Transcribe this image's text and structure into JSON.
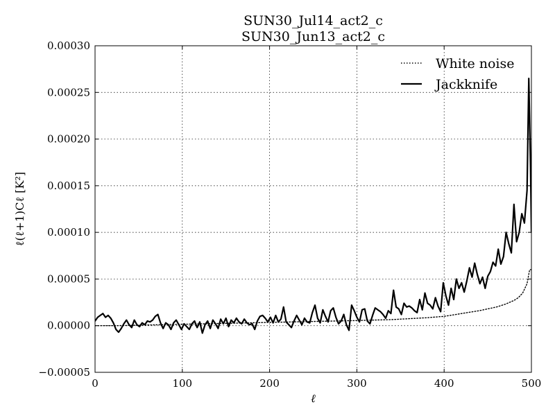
{
  "chart_data": {
    "type": "line",
    "title": [
      "SUN30_Jul14_act2_c",
      "SUN30_Jun13_act2_c"
    ],
    "xlabel": "ℓ",
    "ylabel": "ℓ(ℓ+1)Cℓ [K²]",
    "xlim": [
      0,
      500
    ],
    "ylim": [
      -5e-05,
      0.0003
    ],
    "xticks": [
      0,
      100,
      200,
      300,
      400,
      500
    ],
    "xtick_labels": [
      "0",
      "100",
      "200",
      "300",
      "400",
      "500"
    ],
    "yticks": [
      -5e-05,
      0,
      5e-05,
      0.0001,
      0.00015,
      0.0002,
      0.00025,
      0.0003
    ],
    "ytick_labels": [
      "−0.00005",
      "0.00000",
      "0.00005",
      "0.00010",
      "0.00015",
      "0.00020",
      "0.00025",
      "0.00030"
    ],
    "grid": true,
    "legend": {
      "placement": "top-right"
    },
    "series": [
      {
        "name": "White noise",
        "style": "dotted",
        "color": "#000000",
        "x": [
          0,
          25,
          50,
          75,
          100,
          125,
          150,
          175,
          200,
          225,
          250,
          275,
          300,
          320,
          340,
          360,
          380,
          400,
          420,
          440,
          460,
          470,
          480,
          485,
          490,
          495,
          498,
          500
        ],
        "y": [
          0.0,
          0.0,
          5e-07,
          1e-06,
          1.5e-06,
          2e-06,
          2.5e-06,
          3e-06,
          3.5e-06,
          4e-06,
          4.5e-06,
          5e-06,
          5.5e-06,
          6e-06,
          6.5e-06,
          7.5e-06,
          8.5e-06,
          1e-05,
          1.3e-05,
          1.6e-05,
          2e-05,
          2.3e-05,
          2.7e-05,
          3e-05,
          3.5e-05,
          4.5e-05,
          6e-05,
          6e-05
        ]
      },
      {
        "name": "Jackknife",
        "style": "solid",
        "color": "#000000",
        "x": [
          0,
          3,
          6,
          9,
          12,
          15,
          18,
          21,
          24,
          27,
          30,
          33,
          36,
          39,
          42,
          45,
          48,
          51,
          54,
          57,
          60,
          63,
          66,
          69,
          72,
          75,
          78,
          81,
          84,
          87,
          90,
          93,
          96,
          99,
          102,
          105,
          108,
          111,
          114,
          117,
          120,
          123,
          126,
          129,
          132,
          135,
          138,
          141,
          144,
          147,
          150,
          153,
          156,
          159,
          162,
          165,
          168,
          171,
          174,
          177,
          180,
          183,
          186,
          189,
          192,
          195,
          198,
          201,
          204,
          207,
          210,
          213,
          216,
          219,
          222,
          225,
          228,
          231,
          234,
          237,
          240,
          243,
          246,
          249,
          252,
          255,
          258,
          261,
          264,
          267,
          270,
          273,
          276,
          279,
          282,
          285,
          288,
          291,
          294,
          297,
          300,
          303,
          306,
          309,
          312,
          315,
          318,
          321,
          324,
          327,
          330,
          333,
          336,
          339,
          342,
          345,
          348,
          351,
          354,
          357,
          360,
          363,
          366,
          369,
          372,
          375,
          378,
          381,
          384,
          387,
          390,
          393,
          396,
          399,
          402,
          405,
          408,
          411,
          414,
          417,
          420,
          423,
          426,
          429,
          432,
          435,
          438,
          441,
          444,
          447,
          450,
          453,
          456,
          459,
          462,
          465,
          468,
          471,
          474,
          477,
          480,
          483,
          486,
          489,
          492,
          495,
          497,
          499,
          500
        ],
        "y": [
          5e-06,
          9e-06,
          1.1e-05,
          1.3e-05,
          9e-06,
          1.1e-05,
          8e-06,
          3e-06,
          -4e-06,
          -7e-06,
          -3e-06,
          2e-06,
          6e-06,
          1e-06,
          -2e-06,
          6e-06,
          1e-06,
          -1e-06,
          3e-06,
          1e-06,
          5e-06,
          4e-06,
          6e-06,
          1e-05,
          1.2e-05,
          3e-06,
          -3e-06,
          3e-06,
          1e-06,
          -4e-06,
          3e-06,
          6e-06,
          1e-06,
          -4e-06,
          2e-06,
          -1e-06,
          -4e-06,
          2e-06,
          5e-06,
          -2e-06,
          4e-06,
          -8e-06,
          1e-06,
          5e-06,
          -3e-06,
          6e-06,
          2e-06,
          -3e-06,
          7e-06,
          2e-06,
          8e-06,
          -1e-06,
          6e-06,
          3e-06,
          8e-06,
          4e-06,
          2e-06,
          7e-06,
          3e-06,
          1e-06,
          2e-06,
          -4e-06,
          5e-06,
          1e-05,
          1.1e-05,
          8e-06,
          4e-06,
          9e-06,
          3e-06,
          1.1e-05,
          4e-06,
          7e-06,
          2e-05,
          4e-06,
          1e-06,
          -2e-06,
          5e-06,
          1.1e-05,
          6e-06,
          1e-06,
          8e-06,
          4e-06,
          3e-06,
          1.4e-05,
          2.2e-05,
          8e-06,
          3e-06,
          1.7e-05,
          1e-05,
          4e-06,
          1.6e-05,
          1.9e-05,
          9e-06,
          2e-06,
          5e-06,
          1.2e-05,
          1e-06,
          -5e-06,
          2.2e-05,
          1.6e-05,
          9e-06,
          4e-06,
          1.7e-05,
          1.8e-05,
          5e-06,
          2e-06,
          1.1e-05,
          1.9e-05,
          1.7e-05,
          1.5e-05,
          1.2e-05,
          8e-06,
          1.6e-05,
          1.3e-05,
          3.8e-05,
          2e-05,
          1.8e-05,
          1.2e-05,
          2.4e-05,
          2e-05,
          2.1e-05,
          1.9e-05,
          1.6e-05,
          1.4e-05,
          2.8e-05,
          1.7e-05,
          3.5e-05,
          2.4e-05,
          2.2e-05,
          1.8e-05,
          3e-05,
          2.1e-05,
          1.5e-05,
          4.6e-05,
          3.2e-05,
          2.2e-05,
          4e-05,
          2.8e-05,
          5e-05,
          4e-05,
          4.6e-05,
          3.6e-05,
          4.8e-05,
          6.2e-05,
          5.2e-05,
          6.7e-05,
          5.5e-05,
          4.5e-05,
          5.2e-05,
          4e-05,
          5.3e-05,
          5.8e-05,
          6.8e-05,
          6.4e-05,
          8.2e-05,
          6.6e-05,
          7.4e-05,
          0.0001,
          8.8e-05,
          7.8e-05,
          0.00013,
          9e-05,
          0.0001,
          0.00012,
          0.00011,
          0.000145,
          0.000265,
          0.00017,
          0.0001
        ]
      }
    ]
  }
}
